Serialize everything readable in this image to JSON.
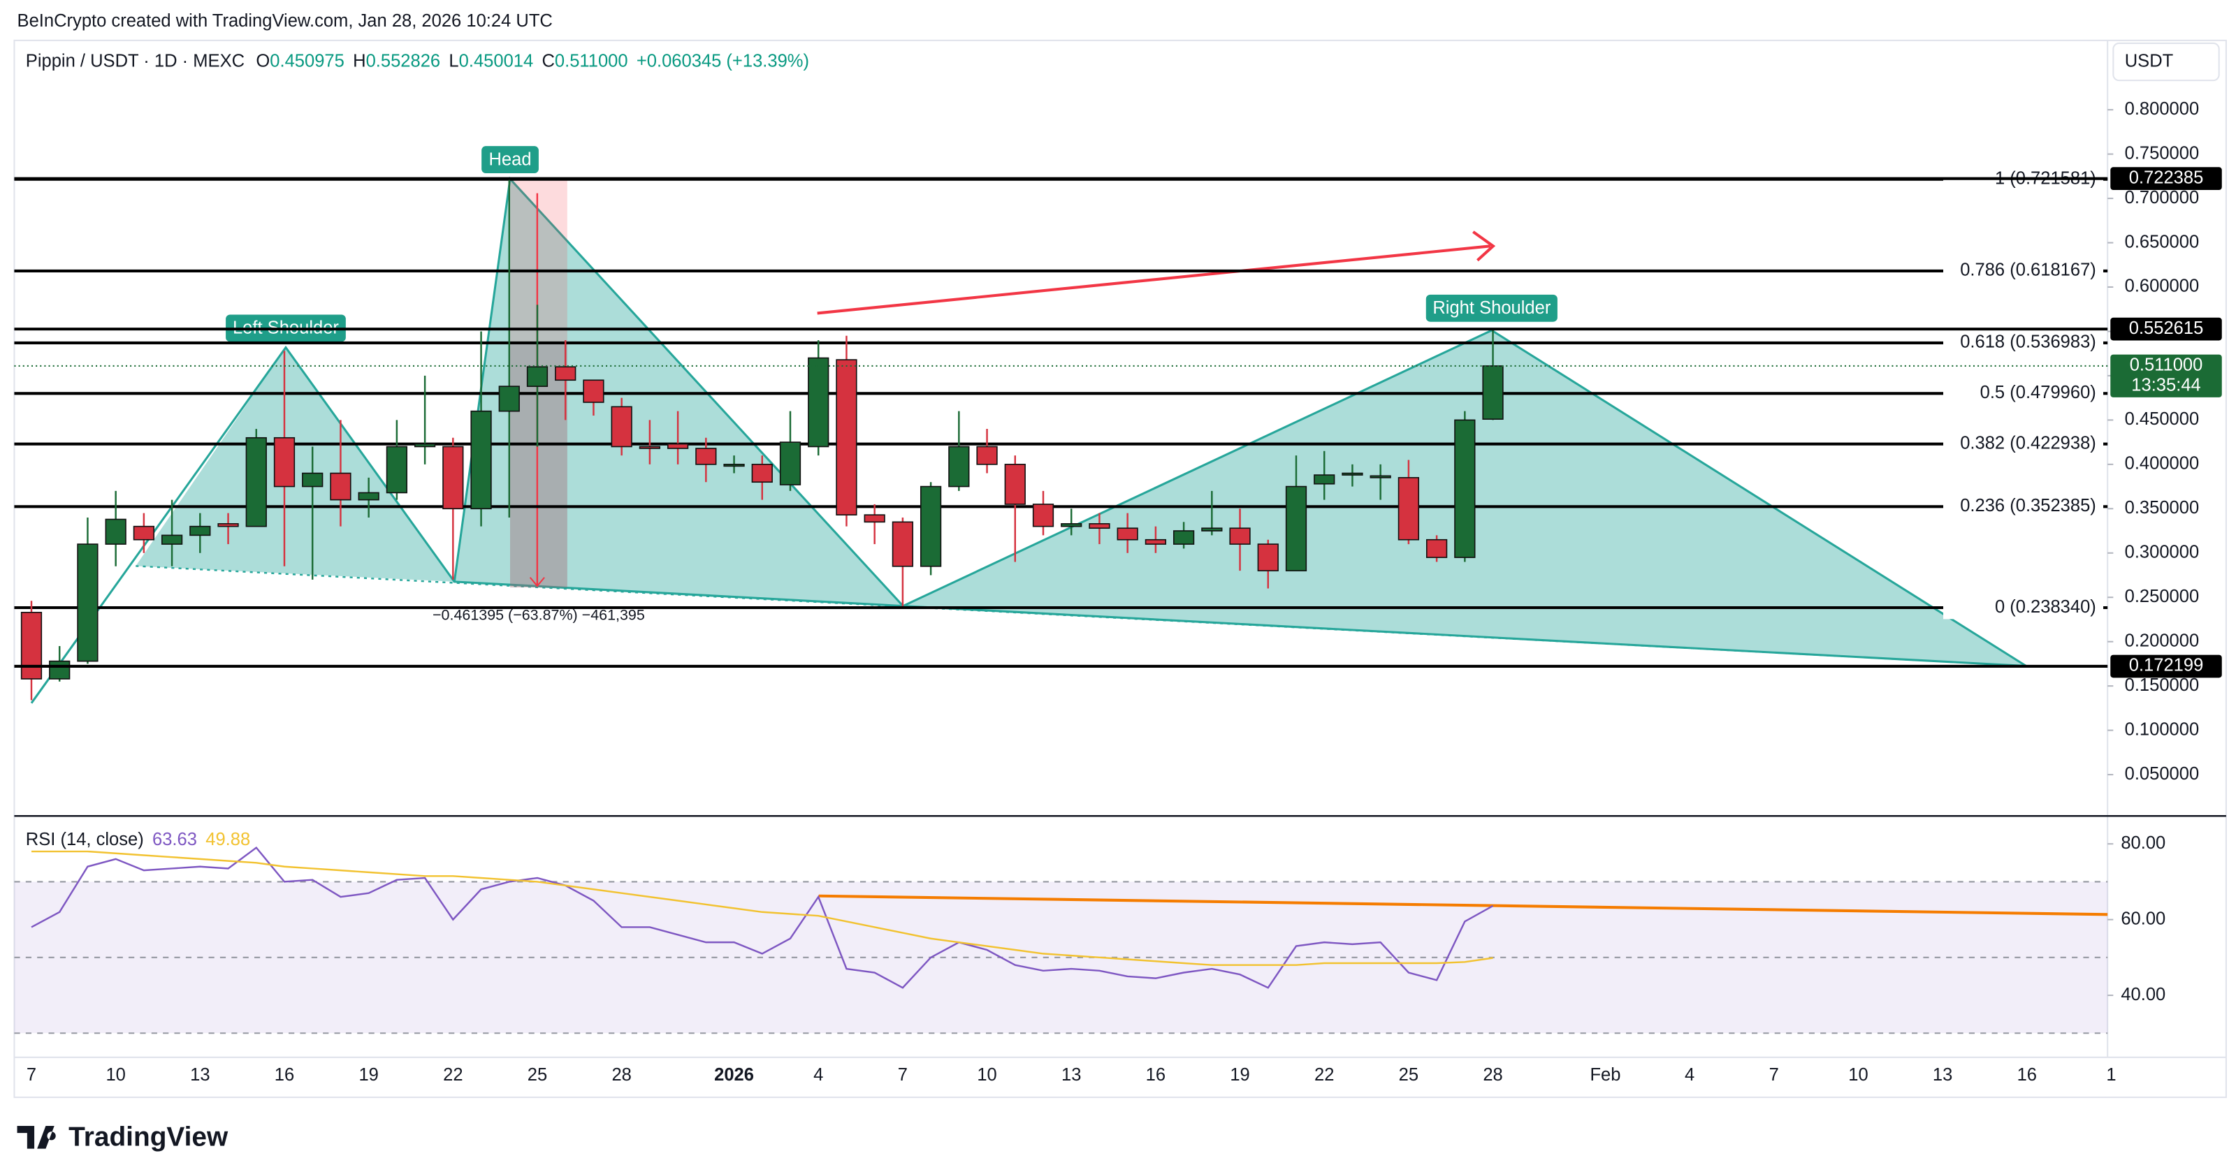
{
  "credit": "BeInCrypto created with TradingView.com, Jan 28, 2026 10:24 UTC",
  "logo": "TradingView",
  "chart_data": [
    {
      "type": "candlestick",
      "title": "Pippin / USDT · 1D · MEXC",
      "header": [
        {
          "label": "O",
          "value": "0.450975"
        },
        {
          "label": "H",
          "value": "0.552826"
        },
        {
          "label": "L",
          "value": "0.450014"
        },
        {
          "label": "C",
          "value": "0.511000"
        }
      ],
      "change": "+0.060345 (+13.39%)",
      "currency": "USDT",
      "categories": [
        "7",
        null,
        null,
        "10",
        null,
        null,
        "13",
        null,
        null,
        "16",
        null,
        null,
        "19",
        null,
        null,
        "22",
        null,
        null,
        "25",
        null,
        null,
        "28",
        null,
        null,
        null,
        "2026",
        null,
        null,
        "4",
        null,
        null,
        "7",
        null,
        null,
        "10",
        null,
        null,
        "13",
        null,
        null,
        "16",
        null,
        null,
        "19",
        null,
        null,
        "22",
        null,
        null,
        "25",
        null,
        null,
        "28",
        null,
        null,
        null,
        "Feb",
        null,
        null,
        "4",
        null,
        null,
        "7",
        null,
        null,
        "10",
        null,
        null,
        "13",
        null,
        null,
        "16",
        null,
        null,
        "1"
      ],
      "open": [
        0.233,
        0.158,
        0.178,
        0.31,
        0.33,
        0.31,
        0.32,
        0.333,
        0.33,
        0.43,
        0.375,
        0.39,
        0.36,
        0.368,
        0.42,
        0.42,
        0.35,
        0.46,
        0.488,
        0.51,
        0.495,
        0.465,
        0.42,
        0.423,
        0.418,
        0.398,
        0.4,
        0.377,
        0.42,
        0.518,
        0.343,
        0.335,
        0.285,
        0.375,
        0.42,
        0.4,
        0.355,
        0.33,
        0.333,
        0.328,
        0.315,
        0.31,
        0.325,
        0.328,
        0.31,
        0.28,
        0.378,
        0.388,
        0.385,
        0.385,
        0.315,
        0.295,
        0.450975,
        null,
        null,
        null,
        null,
        null,
        null,
        null,
        null,
        null,
        null,
        null,
        null,
        null,
        null,
        null,
        null,
        null,
        null,
        null,
        null,
        null,
        null
      ],
      "high": [
        0.246,
        0.195,
        0.34,
        0.37,
        0.345,
        0.36,
        0.345,
        0.345,
        0.44,
        0.528,
        0.42,
        0.45,
        0.385,
        0.45,
        0.5,
        0.43,
        0.55,
        0.721,
        0.58,
        0.54,
        0.49,
        0.475,
        0.45,
        0.46,
        0.43,
        0.41,
        0.41,
        0.46,
        0.54,
        0.545,
        0.355,
        0.34,
        0.38,
        0.46,
        0.44,
        0.41,
        0.37,
        0.35,
        0.345,
        0.345,
        0.33,
        0.335,
        0.37,
        0.35,
        0.315,
        0.41,
        0.415,
        0.4,
        0.4,
        0.405,
        0.32,
        0.46,
        0.552826,
        null,
        null,
        null,
        null,
        null,
        null,
        null,
        null,
        null,
        null,
        null,
        null,
        null,
        null,
        null,
        null,
        null,
        null,
        null,
        null,
        null,
        null
      ],
      "low": [
        0.134,
        0.155,
        0.175,
        0.285,
        0.3,
        0.285,
        0.3,
        0.31,
        0.33,
        0.285,
        0.27,
        0.33,
        0.34,
        0.36,
        0.4,
        0.27,
        0.33,
        0.34,
        0.42,
        0.45,
        0.455,
        0.41,
        0.4,
        0.4,
        0.38,
        0.39,
        0.36,
        0.37,
        0.41,
        0.33,
        0.31,
        0.24,
        0.275,
        0.37,
        0.39,
        0.29,
        0.32,
        0.32,
        0.31,
        0.3,
        0.3,
        0.305,
        0.32,
        0.28,
        0.26,
        0.28,
        0.36,
        0.375,
        0.36,
        0.31,
        0.29,
        0.29,
        0.450014,
        null,
        null,
        null,
        null,
        null,
        null,
        null,
        null,
        null,
        null,
        null,
        null,
        null,
        null,
        null,
        null,
        null,
        null,
        null,
        null,
        null,
        null
      ],
      "close": [
        0.158,
        0.178,
        0.31,
        0.338,
        0.315,
        0.32,
        0.33,
        0.33,
        0.43,
        0.375,
        0.39,
        0.36,
        0.368,
        0.42,
        0.423,
        0.35,
        0.46,
        0.488,
        0.51,
        0.495,
        0.47,
        0.42,
        0.418,
        0.418,
        0.4,
        0.4,
        0.38,
        0.425,
        0.52,
        0.343,
        0.335,
        0.285,
        0.375,
        0.42,
        0.4,
        0.355,
        0.33,
        0.333,
        0.328,
        0.315,
        0.31,
        0.325,
        0.328,
        0.31,
        0.28,
        0.375,
        0.388,
        0.39,
        0.387,
        0.315,
        0.295,
        0.45,
        0.511,
        null,
        null,
        null,
        null,
        null,
        null,
        null,
        null,
        null,
        null,
        null,
        null,
        null,
        null,
        null,
        null,
        null,
        null,
        null,
        null,
        null,
        null
      ],
      "up_color": "#1b6b35",
      "down_color": "#d5323f",
      "ylim": [
        0.005,
        0.875
      ],
      "yticks": [
        {
          "value": 0.05,
          "label": "0.050000"
        },
        {
          "value": 0.1,
          "label": "0.100000"
        },
        {
          "value": 0.15,
          "label": "0.150000"
        },
        {
          "value": 0.2,
          "label": "0.200000"
        },
        {
          "value": 0.25,
          "label": "0.250000"
        },
        {
          "value": 0.3,
          "label": "0.300000"
        },
        {
          "value": 0.35,
          "label": "0.350000"
        },
        {
          "value": 0.4,
          "label": "0.400000"
        },
        {
          "value": 0.45,
          "label": "0.450000"
        },
        {
          "value": 0.5,
          "label": "0.500000"
        },
        {
          "value": 0.55,
          "label": "0.550000"
        },
        {
          "value": 0.6,
          "label": "0.600000"
        },
        {
          "value": 0.65,
          "label": "0.650000"
        },
        {
          "value": 0.7,
          "label": "0.700000"
        },
        {
          "value": 0.75,
          "label": "0.750000"
        },
        {
          "value": 0.8,
          "label": "0.800000"
        }
      ],
      "levels": [
        {
          "value": 0.721581,
          "label": "1 (0.721581)"
        },
        {
          "value": 0.618167,
          "label": "0.786 (0.618167)"
        },
        {
          "value": 0.536983,
          "label": "0.618 (0.536983)"
        },
        {
          "value": 0.47996,
          "label": "0.5 (0.479960)"
        },
        {
          "value": 0.422938,
          "label": "0.382 (0.422938)"
        },
        {
          "value": 0.352385,
          "label": "0.236 (0.352385)"
        },
        {
          "value": 0.23834,
          "label": "0 (0.238340)"
        }
      ],
      "price_tags": [
        {
          "value": 0.722385,
          "label": "0.722385",
          "color": "#000000"
        },
        {
          "value": 0.552615,
          "label": "0.552615",
          "color": "#000000"
        },
        {
          "value": 0.511,
          "label": "0.511000",
          "color": "#1b6b35"
        },
        {
          "value": 0.172199,
          "label": "0.172199",
          "color": "#000000"
        }
      ],
      "countdown": "13:35:44",
      "annotations": {
        "left_shoulder": "Left Shoulder",
        "head": "Head",
        "right_shoulder": "Right Shoulder",
        "measure": "−0.461395 (−63.87%) −461,395"
      }
    },
    {
      "type": "line",
      "title": "RSI (14, close)",
      "series": [
        {
          "color": "#7e57c2",
          "values": [
            58,
            62,
            74,
            76,
            73,
            73.5,
            74,
            73.5,
            79,
            70,
            70.5,
            66,
            67,
            70.5,
            71,
            60,
            68,
            70,
            71,
            69,
            65,
            58,
            58,
            56,
            54,
            54,
            51,
            55,
            66,
            47,
            46,
            42,
            50,
            54,
            52,
            48,
            46.5,
            47,
            46.5,
            45,
            44.5,
            46,
            47,
            45.5,
            42,
            53,
            54,
            53.5,
            54,
            46,
            44,
            59.5,
            63.63
          ]
        },
        {
          "color": "#f2c230",
          "values": [
            78,
            78,
            78,
            77.5,
            77,
            76.5,
            76,
            75.5,
            75,
            74,
            73.5,
            73,
            72.5,
            72,
            71.5,
            71.5,
            71,
            70.5,
            70,
            69,
            68,
            67,
            66,
            65,
            64,
            63,
            62,
            61.5,
            61,
            59.5,
            58,
            56.5,
            55,
            54,
            53,
            52,
            51,
            50.5,
            50,
            49.5,
            49,
            48.5,
            48,
            48,
            48,
            48,
            48.5,
            48.5,
            48.5,
            48.5,
            48.5,
            48.8,
            49.88
          ]
        }
      ],
      "ylim": [
        24,
        87
      ],
      "yticks": [
        {
          "value": 40,
          "label": "40.00"
        },
        {
          "value": 60,
          "label": "60.00"
        },
        {
          "value": 80,
          "label": "80.00"
        }
      ],
      "levels": [
        70,
        50,
        30
      ]
    }
  ]
}
